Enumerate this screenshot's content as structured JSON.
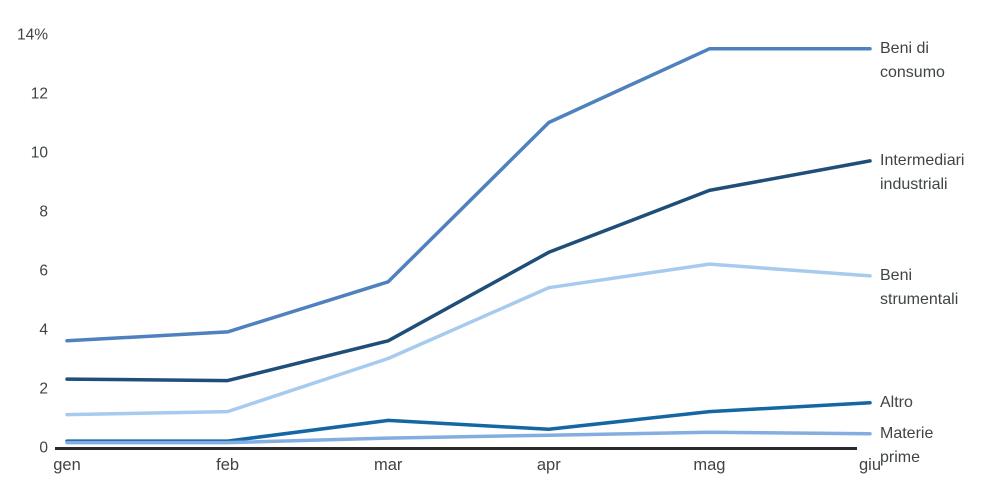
{
  "chart_data": {
    "type": "line",
    "title": "",
    "categories": [
      "gen",
      "feb",
      "mar",
      "apr",
      "mag",
      "giu"
    ],
    "x_axis": {
      "label": ""
    },
    "y_axis": {
      "label": "",
      "unit": "%",
      "min": 0,
      "max": 14,
      "tick_values": [
        0,
        2,
        4,
        6,
        8,
        10,
        12,
        14
      ],
      "tick_labels": [
        "0",
        "2",
        "4",
        "6",
        "8",
        "10",
        "12",
        "14%"
      ]
    },
    "grid": "off",
    "legend_position": "right-of-line-ends",
    "series": [
      {
        "name": "Beni di consumo",
        "color": "#4e81bd",
        "values": [
          3.6,
          3.9,
          5.6,
          11.0,
          13.5,
          13.5
        ]
      },
      {
        "name": "Intermediari industriali",
        "color": "#1f4e79",
        "values": [
          2.3,
          2.25,
          3.6,
          6.6,
          8.7,
          9.7
        ]
      },
      {
        "name": "Beni strumentali",
        "color": "#a6cbee",
        "values": [
          1.1,
          1.2,
          3.0,
          5.4,
          6.2,
          5.8
        ]
      },
      {
        "name": "Altro",
        "color": "#1467a2",
        "values": [
          0.2,
          0.2,
          0.9,
          0.6,
          1.2,
          1.5
        ]
      },
      {
        "name": "Materie prime",
        "color": "#84ade2",
        "values": [
          0.15,
          0.15,
          0.3,
          0.4,
          0.5,
          0.45
        ]
      }
    ],
    "axis_color": "#2b2b2b",
    "text_color": "#3f4447"
  }
}
